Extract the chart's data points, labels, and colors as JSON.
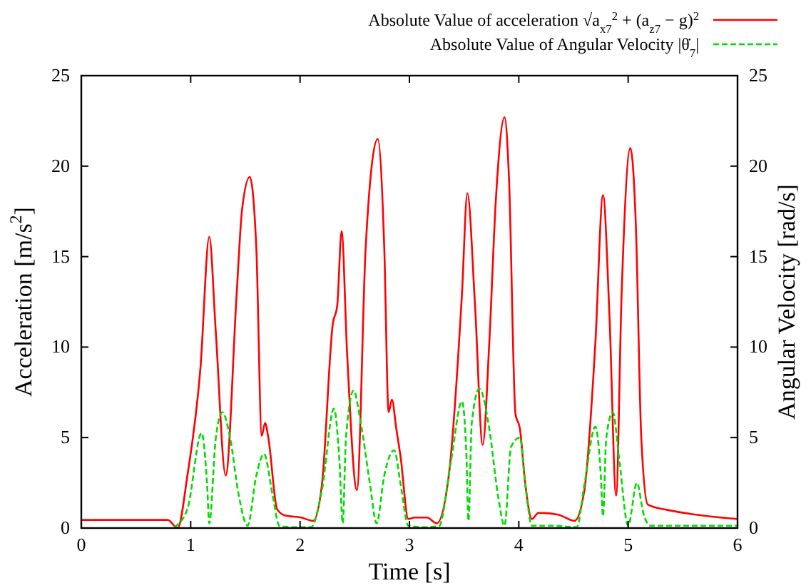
{
  "chart_data": {
    "type": "line",
    "xlabel": "Time [s]",
    "ylabel": "Acceleration [m/s$^{2}$]",
    "y2label": "Angular Velocity [rad/s]",
    "xlim": [
      0,
      6
    ],
    "xticks": [
      0,
      1,
      2,
      3,
      4,
      5,
      6
    ],
    "ylim": [
      0,
      25
    ],
    "yticks": [
      0,
      5,
      10,
      15,
      20,
      25
    ],
    "y2lim": [
      0,
      25
    ],
    "y2ticks": [
      0,
      5,
      10,
      15,
      20,
      25
    ],
    "grid": false,
    "legend": "top right",
    "series": [
      {
        "name": "Absolute Value of acceleration  √a$_{x7}$$^{2}$ + (a$_{z7}$ − g)$^{2}$",
        "color": "#ff0000",
        "line_style": "solid",
        "x": [
          0,
          0.79,
          0.88,
          0.97,
          1.09,
          1.17,
          1.23,
          1.32,
          1.42,
          1.47,
          1.54,
          1.6,
          1.65,
          1.68,
          1.71,
          1.79,
          1.86,
          2.01,
          2.12,
          2.2,
          2.3,
          2.34,
          2.38,
          2.43,
          2.52,
          2.6,
          2.71,
          2.77,
          2.81,
          2.84,
          2.88,
          2.92,
          2.99,
          3.05,
          3.16,
          3.25,
          3.36,
          3.48,
          3.53,
          3.6,
          3.67,
          3.73,
          3.79,
          3.87,
          3.91,
          3.97,
          4.01,
          4.06,
          4.12,
          4.18,
          4.36,
          4.51,
          4.6,
          4.7,
          4.77,
          4.83,
          4.89,
          4.94,
          5.02,
          5.07,
          5.12,
          5.18,
          5.36,
          5.62,
          6
        ],
        "values": [
          0.45,
          0.45,
          0,
          2.9,
          8.9,
          16.1,
          10.8,
          2.9,
          12.9,
          17.6,
          19.4,
          15.5,
          5.1,
          5.8,
          5,
          1.05,
          0.7,
          0.58,
          0.4,
          2.4,
          11.3,
          12.3,
          16.4,
          9.7,
          2.1,
          15.5,
          21.5,
          15.5,
          6.4,
          7.1,
          5.5,
          3.9,
          0.5,
          0.58,
          0.58,
          0.26,
          2.9,
          12.9,
          18.5,
          12.3,
          4.6,
          10.2,
          18.1,
          22.7,
          19.4,
          6.3,
          5.5,
          2.4,
          0.5,
          0.84,
          0.74,
          0.4,
          2.1,
          10.2,
          18.4,
          11.6,
          1.8,
          12.9,
          21,
          16.8,
          5,
          1.3,
          1,
          0.74,
          0.5
        ]
      },
      {
        "name": "Absolute Value of Angular Velocity  |θ̇$_{7}$|",
        "color": "#00dd00",
        "line_style": "dashed",
        "x": [
          0.85,
          0.97,
          1.1,
          1.15,
          1.17,
          1.23,
          1.29,
          1.36,
          1.44,
          1.52,
          1.6,
          1.67,
          1.75,
          1.81,
          1.92,
          2.1,
          2.2,
          2.31,
          2.36,
          2.39,
          2.42,
          2.49,
          2.55,
          2.64,
          2.7,
          2.77,
          2.86,
          2.92,
          2.99,
          3.14,
          3.27,
          3.38,
          3.48,
          3.52,
          3.54,
          3.57,
          3.64,
          3.73,
          3.81,
          3.87,
          3.93,
          4.01,
          4.06,
          4.12,
          4.31,
          4.53,
          4.6,
          4.7,
          4.75,
          4.77,
          4.8,
          4.86,
          4.92,
          5,
          5.08,
          5.14,
          5.2,
          6
        ],
        "values": [
          0.05,
          1.05,
          5.25,
          2.4,
          0.26,
          5,
          6.4,
          5,
          1.8,
          0.13,
          2.9,
          4.1,
          1.8,
          0.13,
          0.05,
          0.05,
          2.1,
          6.6,
          3.7,
          0.26,
          5,
          7.6,
          6,
          2.4,
          0.26,
          2.9,
          4.3,
          2.4,
          0.13,
          0.05,
          0.1,
          3.7,
          7,
          4.2,
          0.4,
          5.8,
          7.7,
          5.5,
          1.8,
          0.13,
          4.5,
          5,
          2.4,
          0.13,
          0.13,
          0.05,
          2.4,
          5.6,
          2.9,
          0.66,
          5,
          6.4,
          3.7,
          0.13,
          2.5,
          0.8,
          0.13,
          0.13
        ]
      }
    ]
  }
}
